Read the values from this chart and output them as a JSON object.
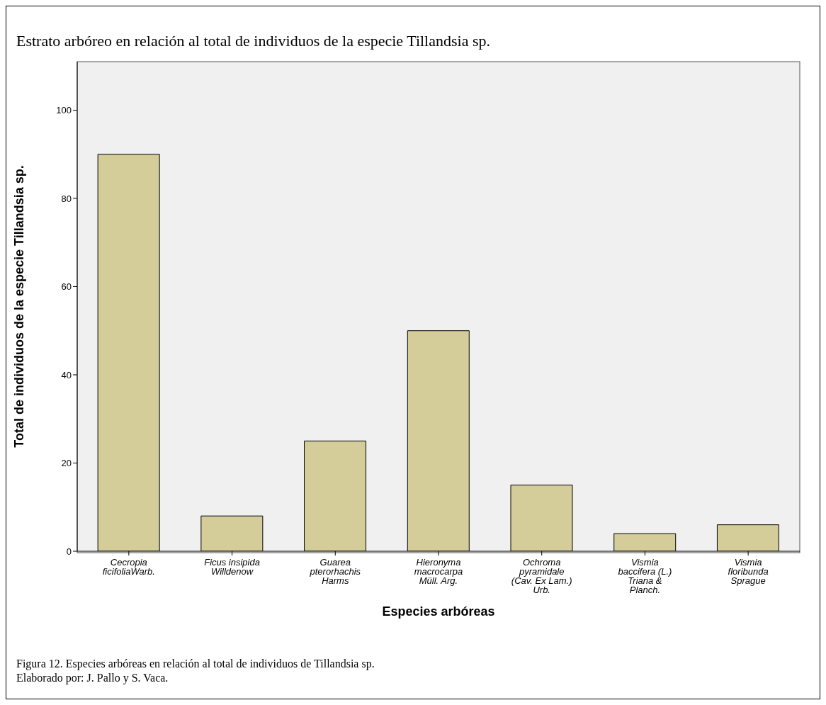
{
  "chart_data": {
    "type": "bar",
    "title": "Estrato arbóreo en relación al total de individuos de la especie Tillandsia sp.",
    "xlabel": "Especies arbóreas",
    "ylabel": "Total de individuos de la especie Tillandsia sp.",
    "categories": [
      "Cecropia ficifoliaWarb.",
      "Ficus insipida Willdenow",
      "Guarea pterorhachis Harms",
      "Hieronyma macrocarpa Müll. Arg.",
      "Ochroma pyramidale (Cav. Ex Lam.) Urb.",
      "Vismia baccifera (L.) Triana & Planch.",
      "Vismia floribunda Sprague"
    ],
    "values": [
      90,
      8,
      25,
      50,
      15,
      4,
      6
    ],
    "color": "#d4cc99",
    "ylim": [
      0,
      111
    ],
    "yticks": [
      0,
      20,
      40,
      60,
      80,
      100
    ],
    "grid": false,
    "legend": false,
    "annotations": [
      "Figura 12. Especies arbóreas en relación al total de individuos de Tillandsia sp.",
      "Elaborado por: J. Pallo y S. Vaca."
    ]
  }
}
